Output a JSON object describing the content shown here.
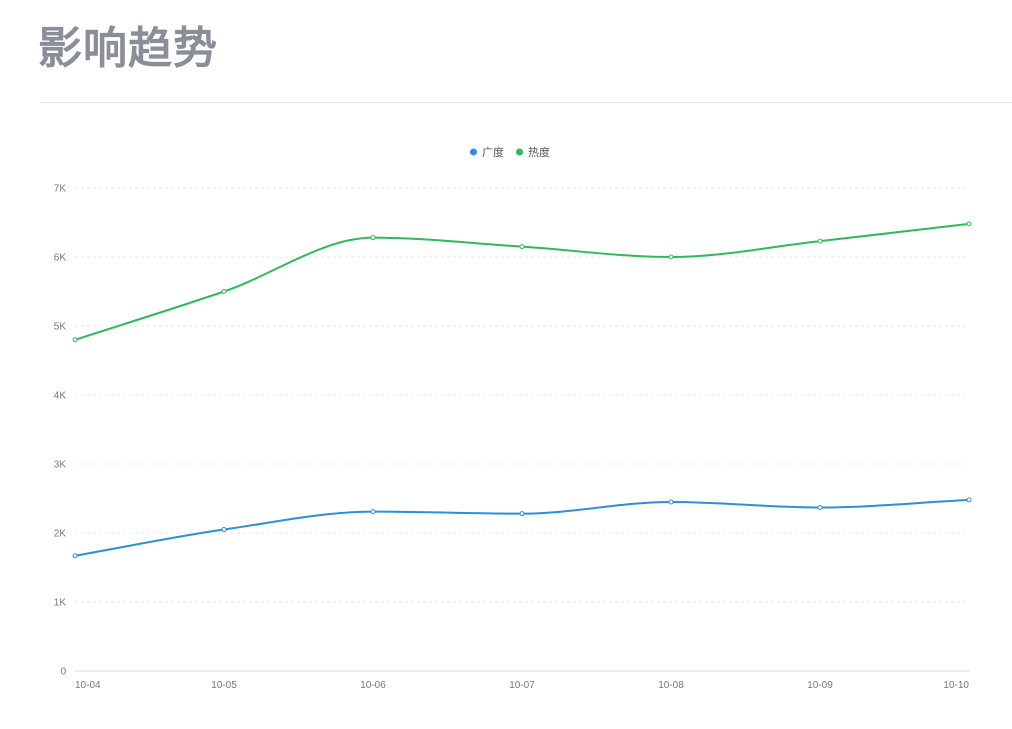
{
  "page": {
    "title": "影响趋势"
  },
  "chart_data": {
    "type": "line",
    "title": "",
    "xlabel": "",
    "ylabel": "",
    "categories": [
      "10-04",
      "10-05",
      "10-06",
      "10-07",
      "10-08",
      "10-09",
      "10-10"
    ],
    "series": [
      {
        "name": "广度",
        "color": "#2b8fdd",
        "values": [
          1670,
          2050,
          2310,
          2280,
          2450,
          2370,
          2480
        ]
      },
      {
        "name": "热度",
        "color": "#2fba5a",
        "values": [
          4800,
          5500,
          6280,
          6150,
          6000,
          6230,
          6480
        ]
      }
    ],
    "ylim": [
      0,
      7000
    ],
    "yticks": [
      0,
      1000,
      2000,
      3000,
      4000,
      5000,
      6000,
      7000
    ],
    "ytick_labels": [
      "0",
      "1K",
      "2K",
      "3K",
      "4K",
      "5K",
      "6K",
      "7K"
    ],
    "grid": true,
    "smooth": true,
    "legend_position": "top-center"
  }
}
